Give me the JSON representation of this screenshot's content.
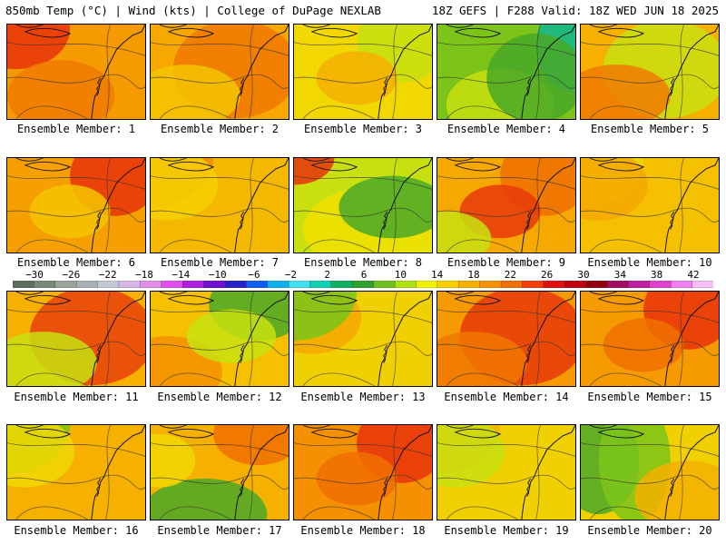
{
  "header": {
    "title_left": "850mb Temp (°C) | Wind (kts) | College of DuPage NEXLAB",
    "title_right": "18Z GEFS | F288 Valid: 18Z WED JUN 18 2025"
  },
  "colorbar": {
    "tick_labels": [
      "−30",
      "−26",
      "−22",
      "−18",
      "−14",
      "−10",
      "−6",
      "−2",
      "2",
      "6",
      "10",
      "14",
      "18",
      "22",
      "26",
      "30",
      "34",
      "38",
      "42"
    ],
    "colors": [
      "#5e6e5e",
      "#7a8a7a",
      "#9aa29a",
      "#aab0b8",
      "#c4c8d4",
      "#d6b6e6",
      "#e28ee6",
      "#e04ef0",
      "#b020e0",
      "#7010d0",
      "#2a20c8",
      "#1060f0",
      "#10b0f0",
      "#40e0f0",
      "#10d0b0",
      "#10b060",
      "#30a030",
      "#70c020",
      "#b0e010",
      "#f0f000",
      "#f8d000",
      "#f8b000",
      "#f89000",
      "#f07000",
      "#f04010",
      "#e01010",
      "#c00010",
      "#900010",
      "#a01060",
      "#c020a0",
      "#e040d0",
      "#f080f0",
      "#f8c0f8"
    ]
  },
  "panels": [
    {
      "label": "Ensemble Member: 1",
      "base": "#f59a00",
      "blobs": [
        {
          "c": "#e8320a"
        },
        {
          "c": "#f07a00"
        }
      ]
    },
    {
      "label": "Ensemble Member: 2",
      "base": "#f7a800",
      "blobs": [
        {
          "c": "#f07800"
        },
        {
          "c": "#f5c400"
        }
      ]
    },
    {
      "label": "Ensemble Member: 3",
      "base": "#f0d800",
      "blobs": [
        {
          "c": "#c8e010"
        },
        {
          "c": "#f5b000"
        }
      ]
    },
    {
      "label": "Ensemble Member: 4",
      "base": "#7cc41a",
      "blobs": [
        {
          "c": "#10b890"
        },
        {
          "c": "#c8e010"
        },
        {
          "c": "#4aa828"
        }
      ]
    },
    {
      "label": "Ensemble Member: 5",
      "base": "#f5b000",
      "blobs": [
        {
          "c": "#c8e010"
        },
        {
          "c": "#f07a00"
        }
      ]
    },
    {
      "label": "Ensemble Member: 6",
      "base": "#f5a000",
      "blobs": [
        {
          "c": "#e8320a"
        },
        {
          "c": "#f5c400"
        }
      ]
    },
    {
      "label": "Ensemble Member: 7",
      "base": "#f5b800",
      "blobs": [
        {
          "c": "#f08a00"
        },
        {
          "c": "#f5d000"
        }
      ]
    },
    {
      "label": "Ensemble Member: 8",
      "base": "#c8e010",
      "blobs": [
        {
          "c": "#f0e000"
        },
        {
          "c": "#4aa828"
        },
        {
          "c": "#e8320a"
        }
      ]
    },
    {
      "label": "Ensemble Member: 9",
      "base": "#f5a800",
      "blobs": [
        {
          "c": "#f07000"
        },
        {
          "c": "#e83a0a"
        },
        {
          "c": "#c8e010"
        }
      ]
    },
    {
      "label": "Ensemble Member: 10",
      "base": "#f5c000",
      "blobs": [
        {
          "c": "#f0d800"
        },
        {
          "c": "#f5a800"
        }
      ]
    },
    {
      "label": "Ensemble Member: 11",
      "base": "#f5b000",
      "blobs": [
        {
          "c": "#e8420a"
        },
        {
          "c": "#c8e010"
        }
      ]
    },
    {
      "label": "Ensemble Member: 12",
      "base": "#f5c000",
      "blobs": [
        {
          "c": "#4aa828"
        },
        {
          "c": "#f59000"
        },
        {
          "c": "#c8e010"
        }
      ]
    },
    {
      "label": "Ensemble Member: 13",
      "base": "#f0d000",
      "blobs": [
        {
          "c": "#c8e010"
        },
        {
          "c": "#f5a800"
        },
        {
          "c": "#7cc41a"
        }
      ]
    },
    {
      "label": "Ensemble Member: 14",
      "base": "#f59a00",
      "blobs": [
        {
          "c": "#e83a0a"
        },
        {
          "c": "#f07800"
        }
      ]
    },
    {
      "label": "Ensemble Member: 15",
      "base": "#f59a00",
      "blobs": [
        {
          "c": "#e8320a"
        },
        {
          "c": "#f07000"
        }
      ]
    },
    {
      "label": "Ensemble Member: 16",
      "base": "#f5b000",
      "blobs": [
        {
          "c": "#7cc41a"
        },
        {
          "c": "#f0d800"
        }
      ]
    },
    {
      "label": "Ensemble Member: 17",
      "base": "#f5b000",
      "blobs": [
        {
          "c": "#f07000"
        },
        {
          "c": "#4aa828"
        },
        {
          "c": "#f0d800"
        }
      ]
    },
    {
      "label": "Ensemble Member: 18",
      "base": "#f59000",
      "blobs": [
        {
          "c": "#e8320a"
        },
        {
          "c": "#f07000"
        }
      ]
    },
    {
      "label": "Ensemble Member: 19",
      "base": "#f0d000",
      "blobs": [
        {
          "c": "#f5b000"
        },
        {
          "c": "#c8e010"
        }
      ]
    },
    {
      "label": "Ensemble Member: 20",
      "base": "#f0d000",
      "blobs": [
        {
          "c": "#4aa828"
        },
        {
          "c": "#7cc41a"
        },
        {
          "c": "#f5b000"
        }
      ]
    }
  ]
}
